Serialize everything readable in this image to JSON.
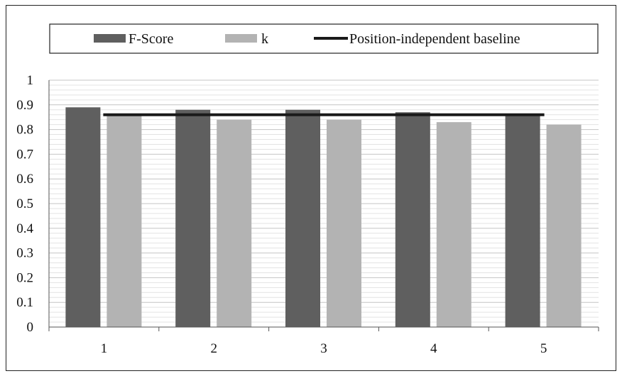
{
  "chart_data": {
    "type": "bar",
    "title": "",
    "xlabel": "",
    "ylabel": "",
    "categories": [
      "1",
      "2",
      "3",
      "4",
      "5"
    ],
    "series": [
      {
        "name": "F-Score",
        "type": "bar",
        "color": "#5f5f5f",
        "values": [
          0.89,
          0.88,
          0.88,
          0.87,
          0.86
        ]
      },
      {
        "name": "k",
        "type": "bar",
        "color": "#b3b3b3",
        "values": [
          0.86,
          0.84,
          0.84,
          0.83,
          0.82
        ]
      },
      {
        "name": "Position-independent baseline",
        "type": "line",
        "color": "#1a1a1a",
        "value": 0.86
      }
    ],
    "ylim": [
      0,
      1
    ],
    "yticks": [
      "0",
      "0.1",
      "0.2",
      "0.3",
      "0.4",
      "0.5",
      "0.6",
      "0.7",
      "0.8",
      "0.9",
      "1"
    ],
    "grid": "horizontal minor",
    "legend": "top"
  }
}
